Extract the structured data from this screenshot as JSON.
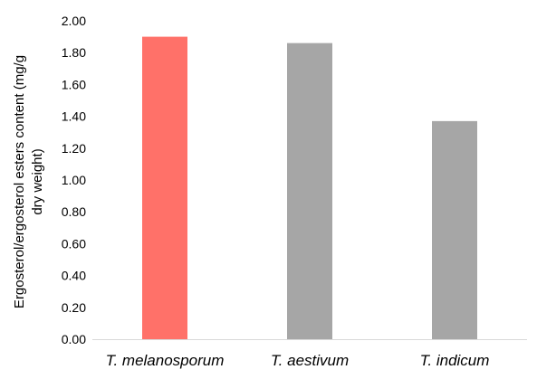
{
  "chart_data": {
    "type": "bar",
    "title": "",
    "xlabel": "",
    "ylabel_lines": [
      "Ergosterol/ergosterol esters content (mg/g",
      "dry weight)"
    ],
    "categories": [
      "T. melanosporum",
      "T. aestivum",
      "T. indicum"
    ],
    "values": [
      1.9,
      1.86,
      1.37
    ],
    "bar_colors": [
      "#FF7169",
      "#A6A6A6",
      "#A6A6A6"
    ],
    "ylim": [
      0,
      2.0
    ],
    "yticks": [
      "0.00",
      "0.20",
      "0.40",
      "0.60",
      "0.80",
      "1.00",
      "1.20",
      "1.40",
      "1.60",
      "1.80",
      "2.00"
    ],
    "grid": false,
    "legend": "none"
  }
}
